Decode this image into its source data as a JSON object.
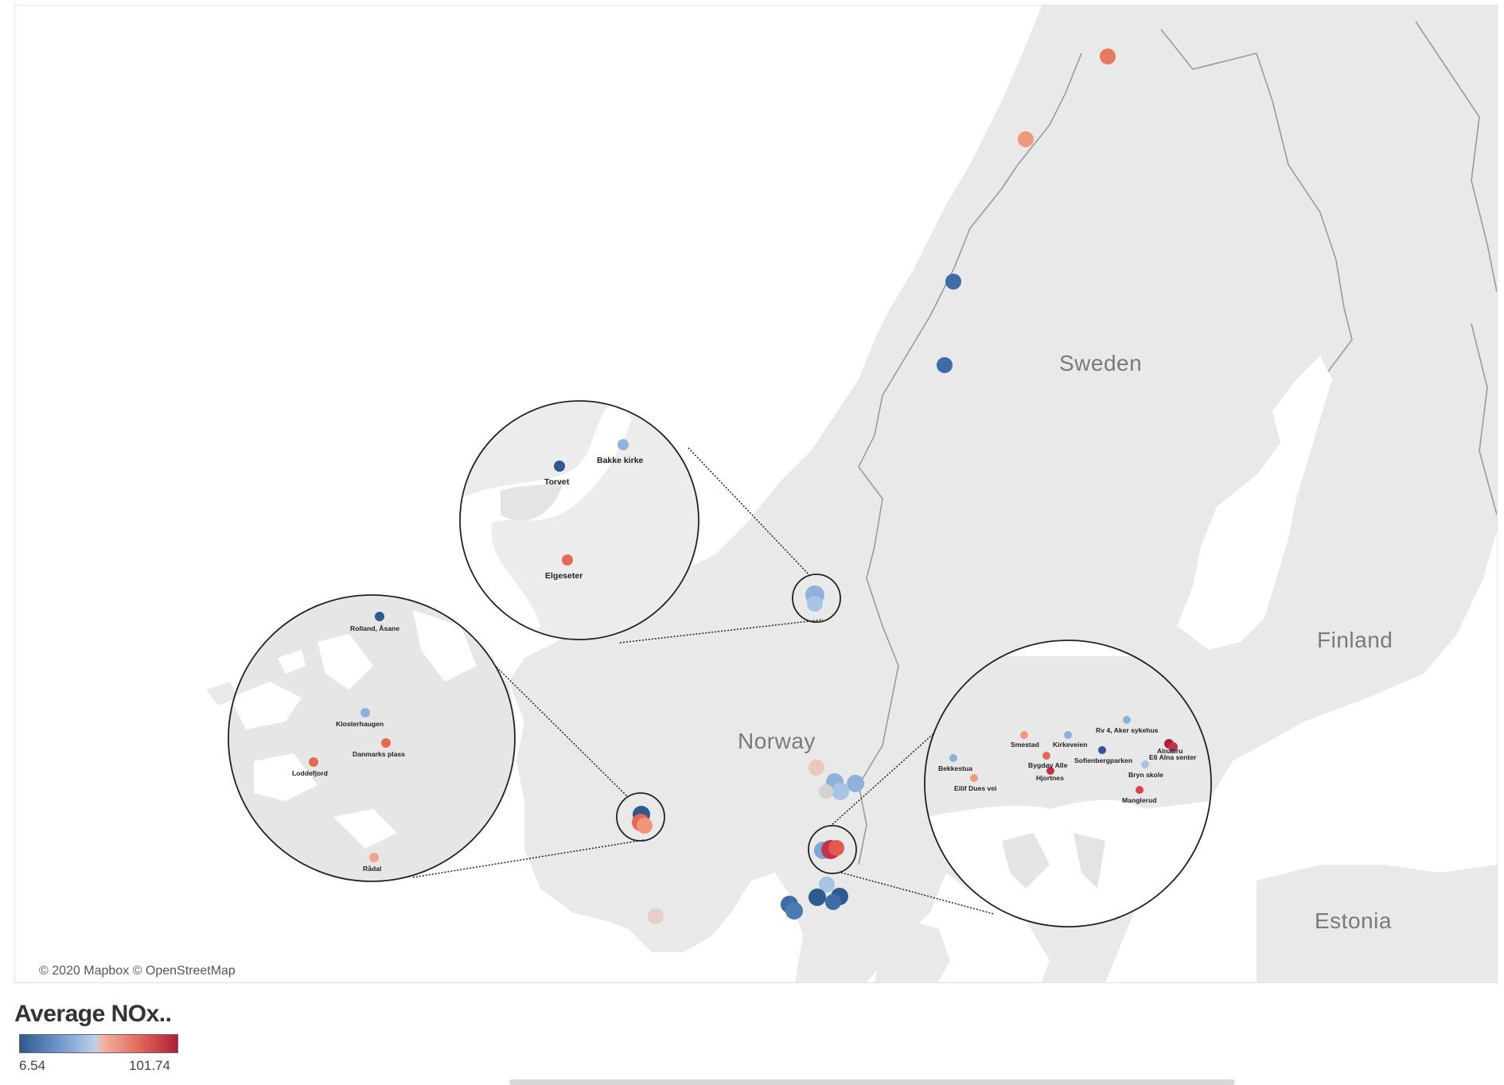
{
  "colors": {
    "low": "#2f5a8e",
    "mid": "#dcdcdc",
    "high": "#b01e34",
    "land": "#e9e9e9",
    "water": "#ffffff",
    "border": "#9b9b9b"
  },
  "map": {
    "countries": [
      "Sweden",
      "Finland",
      "Norway",
      "Estonia"
    ],
    "attribution": "© 2020 Mapbox © OpenStreetMap",
    "icons": [
      "map-marker-icon"
    ]
  },
  "insets": {
    "trondheim": [
      "Bakke kirke",
      "Torvet",
      "Elgeseter"
    ],
    "bergen": [
      "Rolland, Åsane",
      "Klosterhaugen",
      "Danmarks plass",
      "Loddefjord",
      "Rådal"
    ],
    "oslo": [
      "Rv 4, Aker sykehus",
      "Smestad",
      "Kirkeveien",
      "Alnabru",
      "E6 Alna senter",
      "Bekkestua",
      "Sofienbergparken",
      "Bygdøy Alle",
      "Bryn skole",
      "Eilif Dues vei",
      "Hjortnes",
      "Manglerud"
    ]
  },
  "legend": {
    "title": "Average NOx..",
    "min": "6.54",
    "max": "101.74"
  }
}
